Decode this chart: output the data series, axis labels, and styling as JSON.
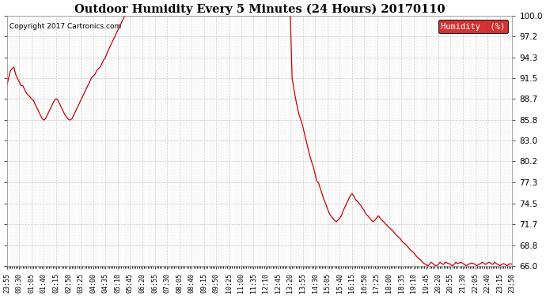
{
  "title": "Outdoor Humidity Every 5 Minutes (24 Hours) 20170110",
  "copyright_text": "Copyright 2017 Cartronics.com",
  "legend_label": "Humidity  (%)",
  "line_color": "#cc0000",
  "legend_bg": "#cc0000",
  "legend_text_color": "#ffffff",
  "background_color": "#ffffff",
  "grid_color": "#bbbbbb",
  "ylim": [
    66.0,
    100.0
  ],
  "yticks": [
    66.0,
    68.8,
    71.7,
    74.5,
    77.3,
    80.2,
    83.0,
    85.8,
    88.7,
    91.5,
    94.3,
    97.2,
    100.0
  ],
  "x_label_step": 7,
  "x_labels": [
    "23:55",
    "00:30",
    "01:05",
    "01:40",
    "02:15",
    "02:50",
    "03:25",
    "04:00",
    "04:35",
    "05:10",
    "05:45",
    "06:20",
    "06:55",
    "07:30",
    "08:05",
    "08:40",
    "09:15",
    "09:50",
    "10:25",
    "11:00",
    "11:35",
    "12:10",
    "12:45",
    "13:20",
    "13:55",
    "14:30",
    "15:05",
    "15:40",
    "16:15",
    "16:50",
    "17:25",
    "18:00",
    "18:35",
    "19:10",
    "19:45",
    "20:20",
    "20:55",
    "21:30",
    "22:05",
    "22:40",
    "23:15",
    "23:50"
  ],
  "humidity_values": [
    90.5,
    91.5,
    92.5,
    92.8,
    93.0,
    92.0,
    91.5,
    91.0,
    90.5,
    90.5,
    90.0,
    89.5,
    89.2,
    89.0,
    88.7,
    88.5,
    88.0,
    87.5,
    87.0,
    86.5,
    86.0,
    85.8,
    86.0,
    86.5,
    87.0,
    87.5,
    88.0,
    88.5,
    88.7,
    88.5,
    88.0,
    87.5,
    87.0,
    86.5,
    86.2,
    85.9,
    85.8,
    86.0,
    86.5,
    87.0,
    87.5,
    88.0,
    88.5,
    89.0,
    89.5,
    90.0,
    90.5,
    91.0,
    91.5,
    91.8,
    92.0,
    92.5,
    92.8,
    93.0,
    93.5,
    94.0,
    94.3,
    95.0,
    95.5,
    96.0,
    96.5,
    97.0,
    97.5,
    98.0,
    98.5,
    99.0,
    99.5,
    100.0,
    100.0,
    100.0,
    100.0,
    100.0,
    100.0,
    100.0,
    100.0,
    100.0,
    100.0,
    100.0,
    100.0,
    100.0,
    100.0,
    100.0,
    100.0,
    100.0,
    100.0,
    100.0,
    100.0,
    100.0,
    100.0,
    100.0,
    100.0,
    100.0,
    100.0,
    100.0,
    100.0,
    100.0,
    100.0,
    100.0,
    100.0,
    100.0,
    100.0,
    100.0,
    100.0,
    100.0,
    100.0,
    100.0,
    100.0,
    100.0,
    100.0,
    100.0,
    100.0,
    100.0,
    100.0,
    100.0,
    100.0,
    100.0,
    100.0,
    100.0,
    100.0,
    100.0,
    100.0,
    100.0,
    100.0,
    100.0,
    100.0,
    100.0,
    100.0,
    100.0,
    100.0,
    100.0,
    100.0,
    100.0,
    100.0,
    100.0,
    100.0,
    100.0,
    100.0,
    100.0,
    100.0,
    100.0,
    100.0,
    100.0,
    100.0,
    100.0,
    100.0,
    100.0,
    100.0,
    100.0,
    100.0,
    100.0,
    100.0,
    100.0,
    100.0,
    100.0,
    100.0,
    100.0,
    100.0,
    100.0,
    100.0,
    100.0,
    100.0,
    100.0,
    91.5,
    90.0,
    88.7,
    87.5,
    86.5,
    85.8,
    85.0,
    84.0,
    83.0,
    82.0,
    81.0,
    80.2,
    79.5,
    78.5,
    77.5,
    77.3,
    76.5,
    75.8,
    75.0,
    74.5,
    73.8,
    73.2,
    72.8,
    72.5,
    72.2,
    72.0,
    72.2,
    72.5,
    72.8,
    73.5,
    74.0,
    74.5,
    75.0,
    75.5,
    75.8,
    75.5,
    75.0,
    74.8,
    74.5,
    74.2,
    73.8,
    73.5,
    73.0,
    72.8,
    72.5,
    72.2,
    72.0,
    72.2,
    72.5,
    72.8,
    72.5,
    72.2,
    72.0,
    71.7,
    71.5,
    71.2,
    71.0,
    70.8,
    70.5,
    70.2,
    70.0,
    69.8,
    69.5,
    69.2,
    69.0,
    68.8,
    68.5,
    68.2,
    68.0,
    67.8,
    67.5,
    67.2,
    67.0,
    66.8,
    66.5,
    66.3,
    66.2,
    66.0,
    66.2,
    66.5,
    66.3,
    66.1,
    66.0,
    66.2,
    66.5,
    66.3,
    66.2,
    66.5,
    66.4,
    66.3,
    66.2,
    66.0,
    66.2,
    66.5,
    66.3,
    66.4,
    66.5,
    66.3,
    66.2,
    66.0,
    66.2,
    66.3,
    66.4,
    66.3,
    66.2,
    66.0,
    66.2,
    66.3,
    66.5,
    66.3,
    66.2,
    66.4,
    66.5,
    66.3,
    66.2,
    66.5,
    66.3,
    66.2,
    66.0,
    66.2,
    66.3,
    66.2,
    66.0,
    66.2,
    66.3,
    66.2
  ]
}
